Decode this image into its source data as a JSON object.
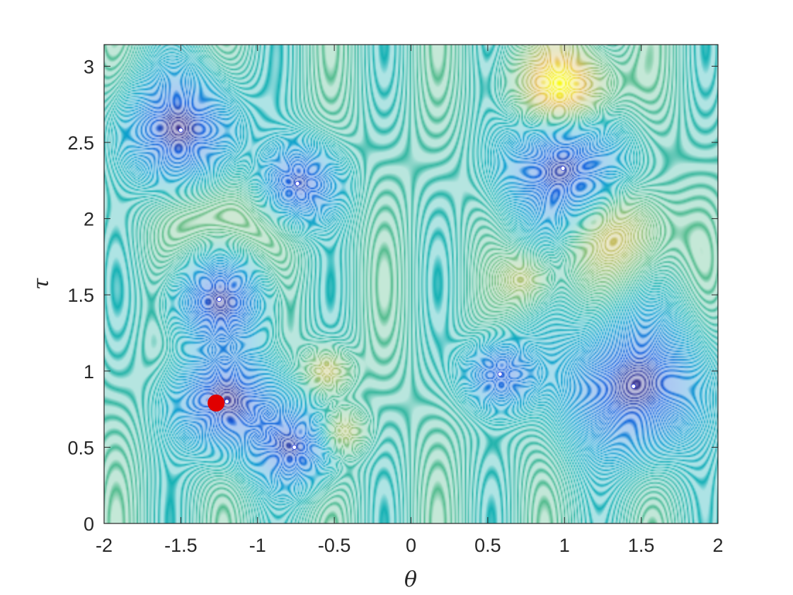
{
  "chart_data": {
    "type": "contour",
    "title": "",
    "xlabel": "θ",
    "ylabel": "τ",
    "xlim": [
      -2,
      2
    ],
    "ylim": [
      0,
      3.14159
    ],
    "grid": false,
    "legend": "none",
    "colormap": "parula",
    "x_ticks": [
      {
        "value": -2,
        "label": "-2"
      },
      {
        "value": -1.5,
        "label": "-1.5"
      },
      {
        "value": -1,
        "label": "-1"
      },
      {
        "value": -0.5,
        "label": "-0.5"
      },
      {
        "value": 0,
        "label": "0"
      },
      {
        "value": 0.5,
        "label": "0.5"
      },
      {
        "value": 1,
        "label": "1"
      },
      {
        "value": 1.5,
        "label": "1.5"
      },
      {
        "value": 2,
        "label": "2"
      }
    ],
    "y_ticks": [
      {
        "value": 0,
        "label": "0"
      },
      {
        "value": 0.5,
        "label": "0.5"
      },
      {
        "value": 1,
        "label": "1"
      },
      {
        "value": 1.5,
        "label": "1.5"
      },
      {
        "value": 2,
        "label": "2"
      },
      {
        "value": 2.5,
        "label": "2.5"
      },
      {
        "value": 3,
        "label": "3"
      }
    ],
    "minima": [
      {
        "theta": -1.5,
        "tau": 2.58
      },
      {
        "theta": -0.74,
        "tau": 2.23
      },
      {
        "theta": 0.99,
        "tau": 2.33
      },
      {
        "theta": -1.25,
        "tau": 1.47
      },
      {
        "theta": 0.58,
        "tau": 0.98
      },
      {
        "theta": 1.45,
        "tau": 0.9
      },
      {
        "theta": -0.76,
        "tau": 0.5
      },
      {
        "theta": -1.2,
        "tau": 0.8
      }
    ],
    "highlight_point": {
      "theta": -1.27,
      "tau": 0.79,
      "color": "#e00000"
    }
  }
}
